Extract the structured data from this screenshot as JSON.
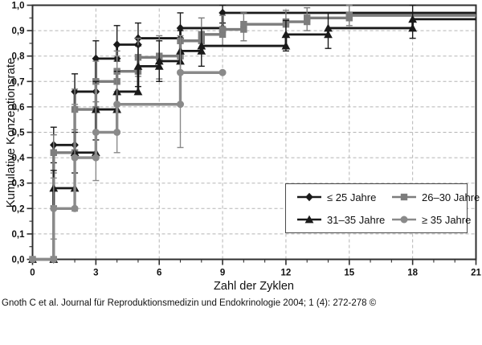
{
  "figure": {
    "y_axis_title": "Kumulative Konzeptionsrate",
    "x_axis_title": "Zahl der Zyklen",
    "caption": "Gnoth C et al. Journal für Reproduktionsmedizin und Endokrinologie 2004; 1 (4): 272-278 ©"
  },
  "colors": {
    "frame": "#2f2f2f",
    "grid": "#b5b5b5",
    "text": "#111111",
    "black_series": "#1a1a1a",
    "gray_series": "#7d7d7d",
    "gray_series_light": "#8a8a8a"
  },
  "chart_data": {
    "type": "line",
    "subtype": "kaplan-meier-step",
    "title": "",
    "xlabel": "Zahl der Zyklen",
    "ylabel": "Kumulative Konzeptionsrate",
    "xlim": [
      0,
      21
    ],
    "ylim": [
      0,
      1
    ],
    "grid": true,
    "legend_position": "lower-right-box",
    "x_ticks_major": [
      0,
      3,
      6,
      9,
      12,
      15,
      18,
      21
    ],
    "x_tick_labels": [
      "0",
      "3",
      "6",
      "9",
      "12",
      "15",
      "18",
      "21"
    ],
    "x_minor_tick_step": 1,
    "y_ticks_major": [
      0,
      0.1,
      0.2,
      0.3,
      0.4,
      0.5,
      0.6,
      0.7,
      0.8,
      0.9,
      1.0
    ],
    "y_tick_labels": [
      "0,0",
      "0,1",
      "0,2",
      "0,3",
      "0,4",
      "0,5",
      "0,6",
      "0,7",
      "0,8",
      "0,9",
      "1,0"
    ],
    "y_minor_tick_step": 0.05,
    "series": [
      {
        "name": "≤ 25 Jahre",
        "slug": "le-25-jahre",
        "marker": "diamond",
        "color": "#1a1a1a",
        "line_width": 2.8,
        "steps": [
          [
            0,
            0
          ],
          [
            1,
            0.45
          ],
          [
            2,
            0.66
          ],
          [
            3,
            0.79
          ],
          [
            4,
            0.845
          ],
          [
            5,
            0.87
          ],
          [
            7,
            0.91
          ],
          [
            9,
            0.97
          ]
        ],
        "end_cycle": 21,
        "end_marker": false,
        "error_bars": [
          [
            1,
            0.38,
            0.52
          ],
          [
            2,
            0.58,
            0.73
          ],
          [
            3,
            0.71,
            0.86
          ],
          [
            4,
            0.78,
            0.92
          ],
          [
            5,
            0.8,
            0.93
          ],
          [
            7,
            0.85,
            0.97
          ],
          [
            9,
            0.93,
            1.0
          ]
        ]
      },
      {
        "name": "26–30 Jahre",
        "slug": "26-30-jahre",
        "marker": "square",
        "color": "#7d7d7d",
        "line_width": 3.4,
        "steps": [
          [
            0,
            0
          ],
          [
            1,
            0.42
          ],
          [
            2,
            0.59
          ],
          [
            3,
            0.7
          ],
          [
            4,
            0.74
          ],
          [
            5,
            0.795
          ],
          [
            6,
            0.8
          ],
          [
            7,
            0.86
          ],
          [
            8,
            0.885
          ],
          [
            9,
            0.905
          ],
          [
            10,
            0.925
          ],
          [
            12,
            0.935
          ],
          [
            13,
            0.95
          ],
          [
            15,
            0.96
          ]
        ],
        "end_cycle": 21,
        "end_marker": false,
        "error_bars": [
          [
            1,
            0.34,
            0.49
          ],
          [
            2,
            0.51,
            0.67
          ],
          [
            3,
            0.62,
            0.78
          ],
          [
            4,
            0.66,
            0.82
          ],
          [
            5,
            0.72,
            0.87
          ],
          [
            6,
            0.71,
            0.88
          ],
          [
            8,
            0.81,
            0.95
          ],
          [
            9,
            0.84,
            0.96
          ],
          [
            10,
            0.86,
            0.97
          ],
          [
            12,
            0.88,
            0.98
          ],
          [
            13,
            0.9,
            0.99
          ],
          [
            15,
            0.92,
            1.0
          ]
        ]
      },
      {
        "name": "31–35 Jahre",
        "slug": "31-35-jahre",
        "marker": "triangle",
        "color": "#1a1a1a",
        "line_width": 2.8,
        "steps": [
          [
            0,
            0
          ],
          [
            1,
            0.28
          ],
          [
            2,
            0.42
          ],
          [
            3,
            0.59
          ],
          [
            4,
            0.66
          ],
          [
            5,
            0.76
          ],
          [
            6,
            0.78
          ],
          [
            7,
            0.82
          ],
          [
            8,
            0.84
          ],
          [
            12,
            0.885
          ],
          [
            14,
            0.91
          ],
          [
            18,
            0.945
          ]
        ],
        "end_cycle": 21,
        "end_marker": false,
        "error_bars": [
          [
            1,
            0.21,
            0.35
          ],
          [
            2,
            0.34,
            0.5
          ],
          [
            3,
            0.47,
            0.7
          ],
          [
            4,
            0.58,
            0.74
          ],
          [
            5,
            0.68,
            0.84
          ],
          [
            6,
            0.7,
            0.86
          ],
          [
            7,
            0.74,
            0.9
          ],
          [
            8,
            0.76,
            0.91
          ],
          [
            12,
            0.82,
            0.94
          ],
          [
            14,
            0.83,
            0.97
          ],
          [
            18,
            0.87,
            1.0
          ]
        ]
      },
      {
        "name": "≥ 35 Jahre",
        "slug": "ge-35-jahre",
        "marker": "circle",
        "color": "#8a8a8a",
        "line_width": 3.4,
        "steps": [
          [
            0,
            0
          ],
          [
            1,
            0.2
          ],
          [
            2,
            0.4
          ],
          [
            3,
            0.5
          ],
          [
            4,
            0.61
          ],
          [
            7,
            0.735
          ]
        ],
        "end_cycle": 9,
        "end_marker": true,
        "error_bars": [
          [
            1,
            0.08,
            0.32
          ],
          [
            2,
            0.19,
            0.61
          ],
          [
            3,
            0.31,
            0.69
          ],
          [
            4,
            0.42,
            0.8
          ],
          [
            7,
            0.44,
            0.88
          ]
        ]
      }
    ]
  },
  "legend": {
    "items": [
      {
        "label": "≤ 25 Jahre"
      },
      {
        "label": "26–30 Jahre"
      },
      {
        "label": "31–35 Jahre"
      },
      {
        "label": "≥ 35 Jahre"
      }
    ]
  }
}
